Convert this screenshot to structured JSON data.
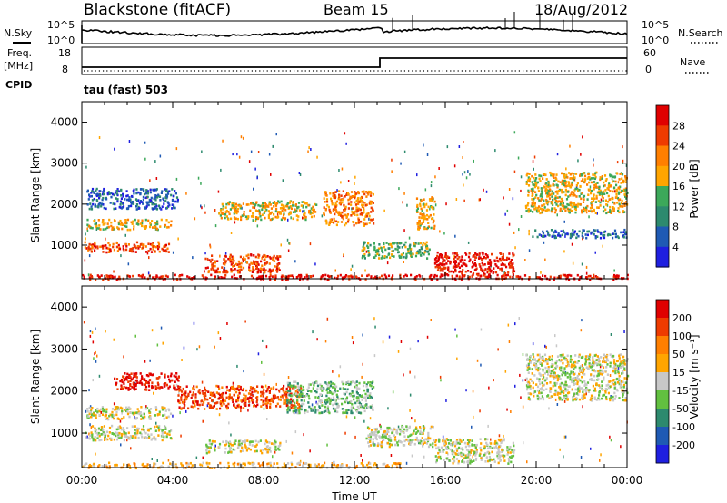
{
  "header": {
    "station": "Blackstone (fitACF)",
    "beam": "Beam 15",
    "date": "18/Aug/2012"
  },
  "noise_panel": {
    "left_label": "N.Sky",
    "left_ticks": [
      "10^5",
      "10^0"
    ],
    "right_ticks": [
      "10^5",
      "10^0"
    ],
    "right_label": "N.Search"
  },
  "freq_panel": {
    "left_label_1": "Freq.",
    "left_label_2": "[MHz]",
    "left_ticks": [
      "18",
      "8"
    ],
    "right_ticks": [
      "60",
      "0"
    ],
    "right_label": "Nave",
    "cpid_label": "CPID",
    "cpid_text": "tau (fast) 503"
  },
  "chart_data": [
    {
      "type": "heatmap",
      "name": "power",
      "ylabel": "Slant Range [km]",
      "yticks": [
        "1000",
        "2000",
        "3000",
        "4000"
      ],
      "ylim": [
        180,
        4500
      ],
      "xlim": [
        0,
        24
      ],
      "colorbar_label": "Power [dB]",
      "colorbar_ticks": [
        "4",
        "8",
        "12",
        "16",
        "20",
        "24",
        "28"
      ],
      "colors": [
        "#1f1fe0",
        "#1f5ab4",
        "#2d8a6e",
        "#3ca85a",
        "#ffa500",
        "#ff7f00",
        "#ee3b00",
        "#e00000"
      ],
      "regions": [
        {
          "t0": 0.1,
          "t1": 3.9,
          "r0": 850,
          "r1": 1100,
          "level": 6
        },
        {
          "t0": 0.2,
          "t1": 3.9,
          "r0": 1400,
          "r1": 1650,
          "level": 4
        },
        {
          "t0": 0.2,
          "t1": 4.2,
          "r0": 1900,
          "r1": 2400,
          "level": 1
        },
        {
          "t0": 5.4,
          "t1": 8.7,
          "r0": 350,
          "r1": 800,
          "level": 6
        },
        {
          "t0": 6.0,
          "t1": 10.3,
          "r0": 1650,
          "r1": 2100,
          "level": 4
        },
        {
          "t0": 10.6,
          "t1": 12.8,
          "r0": 1500,
          "r1": 2350,
          "level": 5
        },
        {
          "t0": 12.3,
          "t1": 15.3,
          "r0": 700,
          "r1": 1100,
          "level": 3
        },
        {
          "t0": 14.7,
          "t1": 15.5,
          "r0": 1400,
          "r1": 2200,
          "level": 4
        },
        {
          "t0": 15.5,
          "t1": 19.0,
          "r0": 250,
          "r1": 850,
          "level": 7
        },
        {
          "t0": 19.5,
          "t1": 24.0,
          "r0": 1800,
          "r1": 2800,
          "level": 4
        },
        {
          "t0": 19.8,
          "t1": 24.0,
          "r0": 1200,
          "r1": 1400,
          "level": 1
        },
        {
          "t0": 0.0,
          "t1": 24.0,
          "r0": 190,
          "r1": 300,
          "level": 7
        }
      ]
    },
    {
      "type": "heatmap",
      "name": "velocity",
      "ylabel": "Slant Range [km]",
      "yticks": [
        "1000",
        "2000",
        "3000",
        "4000"
      ],
      "ylim": [
        180,
        4500
      ],
      "xlim": [
        0,
        24
      ],
      "xlabel": "Time UT",
      "xticks": [
        "00:00",
        "04:00",
        "08:00",
        "12:00",
        "16:00",
        "20:00",
        "00:00"
      ],
      "colorbar_label": "Velocity [m s⁻¹]",
      "colorbar_ticks": [
        "200",
        "100",
        "50",
        "15",
        "-15",
        "-50",
        "-100",
        "-200"
      ],
      "colors": [
        "#1f1fe0",
        "#1f5ab4",
        "#2d8a6e",
        "#62c040",
        "#c8c8c8",
        "#ffa500",
        "#ff7f00",
        "#ee3b00",
        "#e00000"
      ],
      "regions": [
        {
          "t0": 0.1,
          "t1": 3.9,
          "r0": 850,
          "r1": 1200,
          "level": 4
        },
        {
          "t0": 0.2,
          "t1": 3.9,
          "r0": 1350,
          "r1": 1650,
          "level": 4
        },
        {
          "t0": 1.4,
          "t1": 4.3,
          "r0": 2050,
          "r1": 2450,
          "level": 8
        },
        {
          "t0": 4.2,
          "t1": 9.7,
          "r0": 1600,
          "r1": 2150,
          "level": 7
        },
        {
          "t0": 9.0,
          "t1": 12.8,
          "r0": 1500,
          "r1": 2250,
          "level": 3
        },
        {
          "t0": 5.4,
          "t1": 8.7,
          "r0": 550,
          "r1": 850,
          "level": 4
        },
        {
          "t0": 0.0,
          "t1": 14.0,
          "r0": 190,
          "r1": 320,
          "level": 5
        },
        {
          "t0": 15.5,
          "t1": 19.0,
          "r0": 300,
          "r1": 900,
          "level": 4
        },
        {
          "t0": 19.5,
          "t1": 24.0,
          "r0": 1800,
          "r1": 2900,
          "level": 4
        },
        {
          "t0": 12.5,
          "t1": 15.5,
          "r0": 700,
          "r1": 1200,
          "level": 4
        }
      ]
    }
  ]
}
